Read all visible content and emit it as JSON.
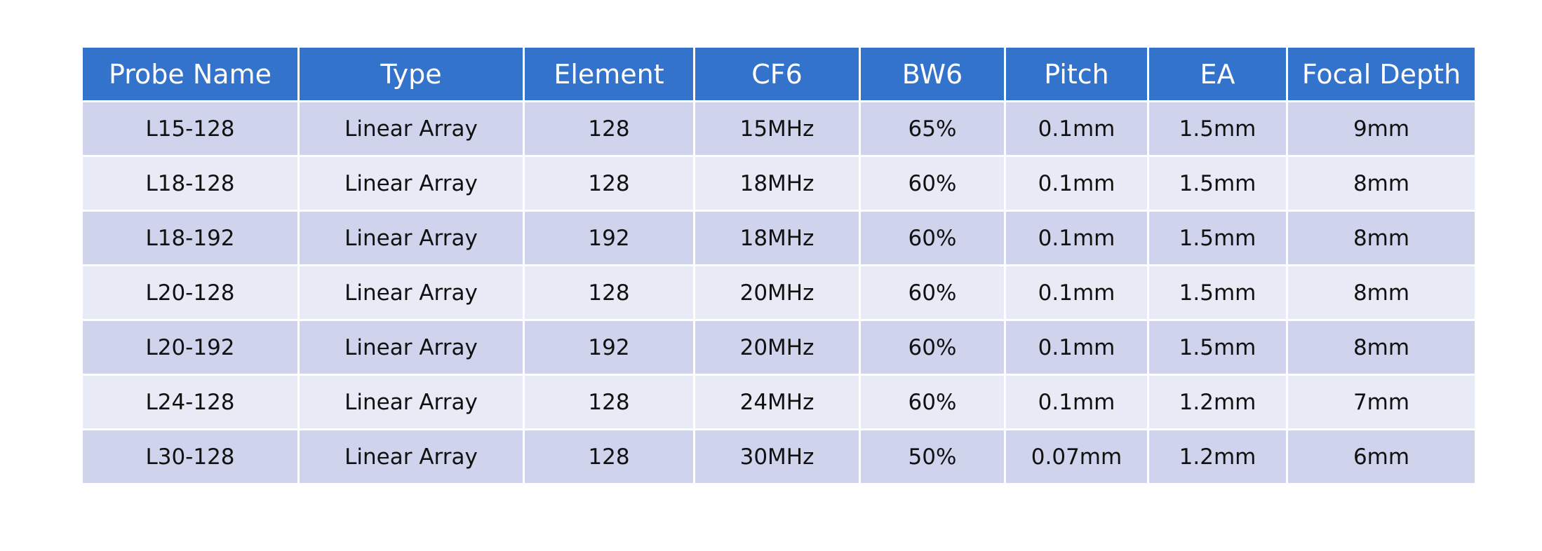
{
  "table": {
    "headers": [
      "Probe Name",
      "Type",
      "Element",
      "CF6",
      "BW6",
      "Pitch",
      "EA",
      "Focal Depth"
    ],
    "rows": [
      [
        "L15-128",
        "Linear Array",
        "128",
        "15MHz",
        "65%",
        "0.1mm",
        "1.5mm",
        "9mm"
      ],
      [
        "L18-128",
        "Linear Array",
        "128",
        "18MHz",
        "60%",
        "0.1mm",
        "1.5mm",
        "8mm"
      ],
      [
        "L18-192",
        "Linear Array",
        "192",
        "18MHz",
        "60%",
        "0.1mm",
        "1.5mm",
        "8mm"
      ],
      [
        "L20-128",
        "Linear Array",
        "128",
        "20MHz",
        "60%",
        "0.1mm",
        "1.5mm",
        "8mm"
      ],
      [
        "L20-192",
        "Linear Array",
        "192",
        "20MHz",
        "60%",
        "0.1mm",
        "1.5mm",
        "8mm"
      ],
      [
        "L24-128",
        "Linear Array",
        "128",
        "24MHz",
        "60%",
        "0.1mm",
        "1.2mm",
        "7mm"
      ],
      [
        "L30-128",
        "Linear Array",
        "128",
        "30MHz",
        "50%",
        "0.07mm",
        "1.2mm",
        "6mm"
      ]
    ]
  },
  "colors": {
    "header_bg": "#3473cb",
    "header_text": "#ffffff",
    "row_odd_bg": "#cfd4ec",
    "row_even_bg": "#e8eaf6"
  }
}
